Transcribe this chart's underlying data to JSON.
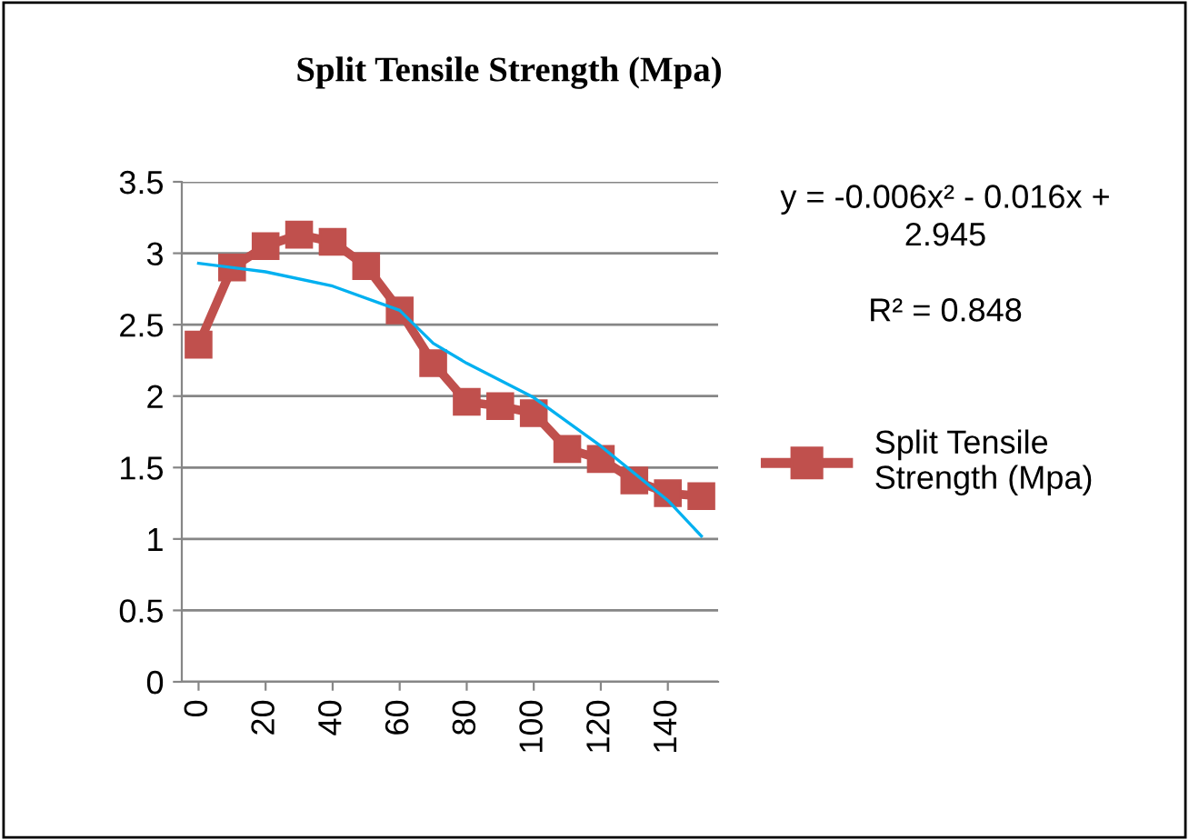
{
  "chart_data": {
    "type": "line",
    "title": "Split Tensile Strength (Mpa)",
    "x": [
      0,
      10,
      20,
      30,
      40,
      50,
      60,
      70,
      80,
      90,
      100,
      110,
      120,
      130,
      140,
      150
    ],
    "series": [
      {
        "name": "Split Tensile Strength (Mpa)",
        "color": "#c0504d",
        "marker": "square",
        "values": [
          2.36,
          2.9,
          3.05,
          3.13,
          3.08,
          2.91,
          2.6,
          2.23,
          1.96,
          1.93,
          1.88,
          1.63,
          1.56,
          1.41,
          1.32,
          1.3
        ]
      },
      {
        "type": "line",
        "color": "#00b0f0",
        "marker": "none",
        "x": [
          0,
          20,
          40,
          60,
          70,
          80,
          100,
          120,
          140,
          150
        ],
        "values": [
          2.93,
          2.87,
          2.77,
          2.6,
          2.37,
          2.23,
          1.99,
          1.65,
          1.27,
          1.02
        ]
      }
    ],
    "xlim": [
      -5,
      155
    ],
    "xticks": [
      0,
      20,
      40,
      60,
      80,
      100,
      120,
      140
    ],
    "ylim": [
      0,
      3.5
    ],
    "yticks": [
      0,
      0.5,
      1,
      1.5,
      2,
      2.5,
      3,
      3.5
    ],
    "grid": "y",
    "legend": "right",
    "annotations": [
      "y = -0.006x² - 0.016x + 2.945",
      "R² = 0.848"
    ]
  }
}
